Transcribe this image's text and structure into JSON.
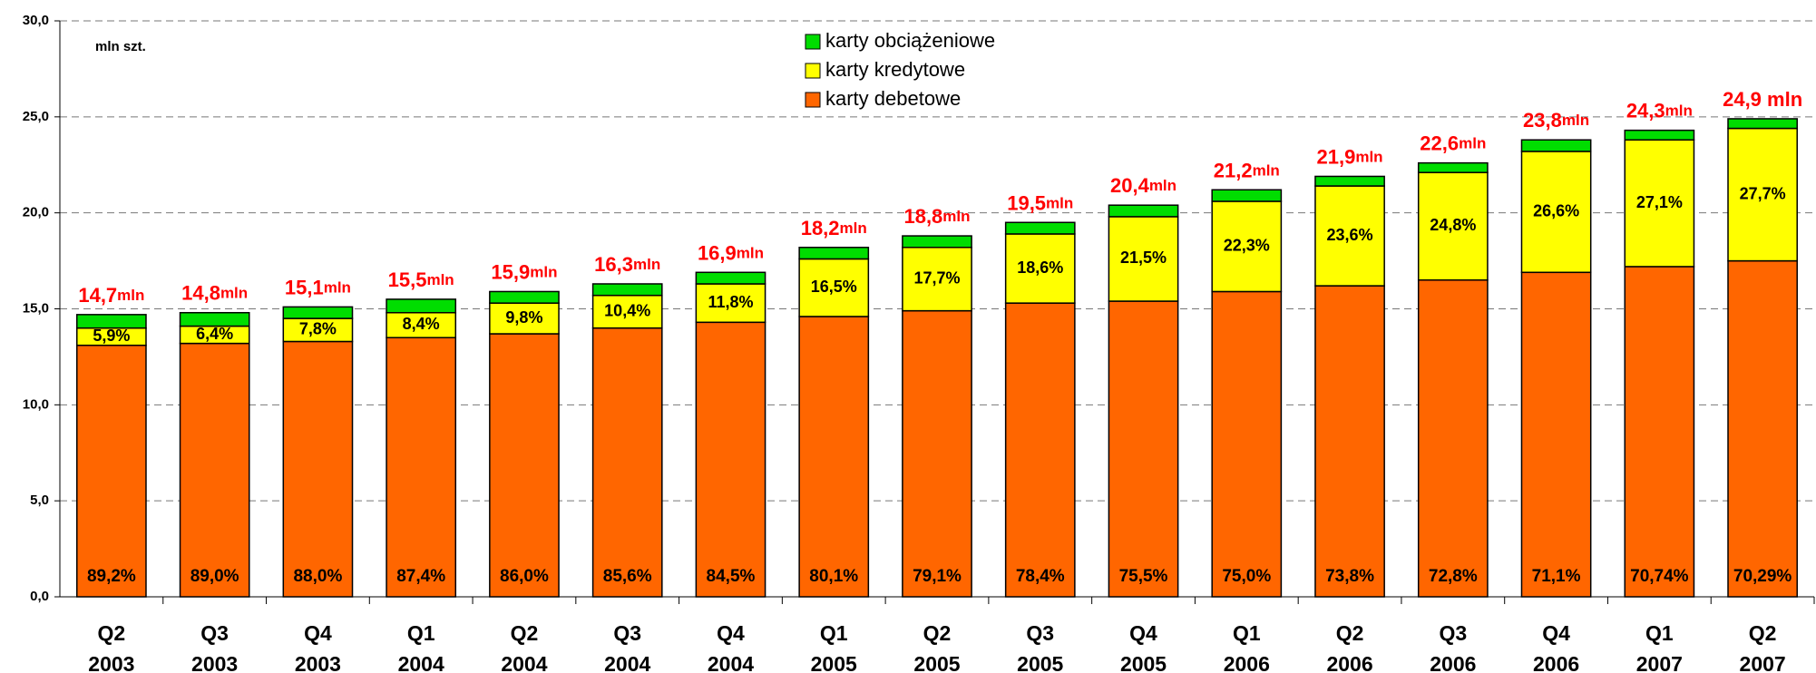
{
  "chart_data": {
    "type": "stacked-bar",
    "unit_label": "mln szt.",
    "categories": [
      [
        "Q2",
        "2003"
      ],
      [
        "Q3",
        "2003"
      ],
      [
        "Q4",
        "2003"
      ],
      [
        "Q1",
        "2004"
      ],
      [
        "Q2",
        "2004"
      ],
      [
        "Q3",
        "2004"
      ],
      [
        "Q4",
        "2004"
      ],
      [
        "Q1",
        "2005"
      ],
      [
        "Q2",
        "2005"
      ],
      [
        "Q3",
        "2005"
      ],
      [
        "Q4",
        "2005"
      ],
      [
        "Q1",
        "2006"
      ],
      [
        "Q2",
        "2006"
      ],
      [
        "Q3",
        "2006"
      ],
      [
        "Q4",
        "2006"
      ],
      [
        "Q1",
        "2007"
      ],
      [
        "Q2",
        "2007"
      ]
    ],
    "series": [
      {
        "name": "karty debetowe",
        "color": "#ff6600",
        "values": [
          13.1,
          13.2,
          13.3,
          13.5,
          13.7,
          14.0,
          14.3,
          14.6,
          14.9,
          15.3,
          15.4,
          15.9,
          16.2,
          16.5,
          16.9,
          17.2,
          17.5
        ],
        "share_labels": [
          "89,2%",
          "89,0%",
          "88,0%",
          "87,4%",
          "86,0%",
          "85,6%",
          "84,5%",
          "80,1%",
          "79,1%",
          "78,4%",
          "75,5%",
          "75,0%",
          "73,8%",
          "72,8%",
          "71,1%",
          "70,74%",
          "70,29%"
        ]
      },
      {
        "name": "karty kredytowe",
        "color": "#ffff00",
        "values": [
          0.9,
          0.9,
          1.2,
          1.3,
          1.6,
          1.7,
          2.0,
          3.0,
          3.3,
          3.6,
          4.4,
          4.7,
          5.2,
          5.6,
          6.3,
          6.6,
          6.9
        ],
        "share_labels": [
          "5,9%",
          "6,4%",
          "7,8%",
          "8,4%",
          "9,8%",
          "10,4%",
          "11,8%",
          "16,5%",
          "17,7%",
          "18,6%",
          "21,5%",
          "22,3%",
          "23,6%",
          "24,8%",
          "26,6%",
          "27,1%",
          "27,7%"
        ]
      },
      {
        "name": "karty obciążeniowe",
        "color": "#00dd00",
        "values": [
          0.7,
          0.7,
          0.6,
          0.7,
          0.6,
          0.6,
          0.6,
          0.6,
          0.6,
          0.6,
          0.6,
          0.6,
          0.5,
          0.5,
          0.6,
          0.5,
          0.5
        ]
      }
    ],
    "totals": [
      14.7,
      14.8,
      15.1,
      15.5,
      15.9,
      16.3,
      16.9,
      18.2,
      18.8,
      19.5,
      20.4,
      21.2,
      21.9,
      22.6,
      23.8,
      24.3,
      24.9
    ],
    "total_labels": [
      [
        "14,7",
        "mln"
      ],
      [
        "14,8",
        "mln"
      ],
      [
        "15,1",
        "mln"
      ],
      [
        "15,5",
        "mln"
      ],
      [
        "15,9",
        "mln"
      ],
      [
        "16,3",
        "mln"
      ],
      [
        "16,9",
        "mln"
      ],
      [
        "18,2",
        "mln"
      ],
      [
        "18,8",
        "mln"
      ],
      [
        "19,5",
        "mln"
      ],
      [
        "20,4",
        "mln"
      ],
      [
        "21,2",
        "mln"
      ],
      [
        "21,9",
        "mln"
      ],
      [
        "22,6",
        "mln"
      ],
      [
        "23,8",
        "mln"
      ],
      [
        "24,3",
        "mln"
      ],
      [
        "24,9 mln"
      ]
    ],
    "ylim": [
      0,
      30
    ],
    "yticks": [
      {
        "value": 0,
        "label": "0,0"
      },
      {
        "value": 5,
        "label": "5,0"
      },
      {
        "value": 10,
        "label": "10,0"
      },
      {
        "value": 15,
        "label": "15,0"
      },
      {
        "value": 20,
        "label": "20,0"
      },
      {
        "value": 25,
        "label": "25,0"
      },
      {
        "value": 30,
        "label": "30,0"
      }
    ],
    "grid": true,
    "legend": "top-center"
  }
}
